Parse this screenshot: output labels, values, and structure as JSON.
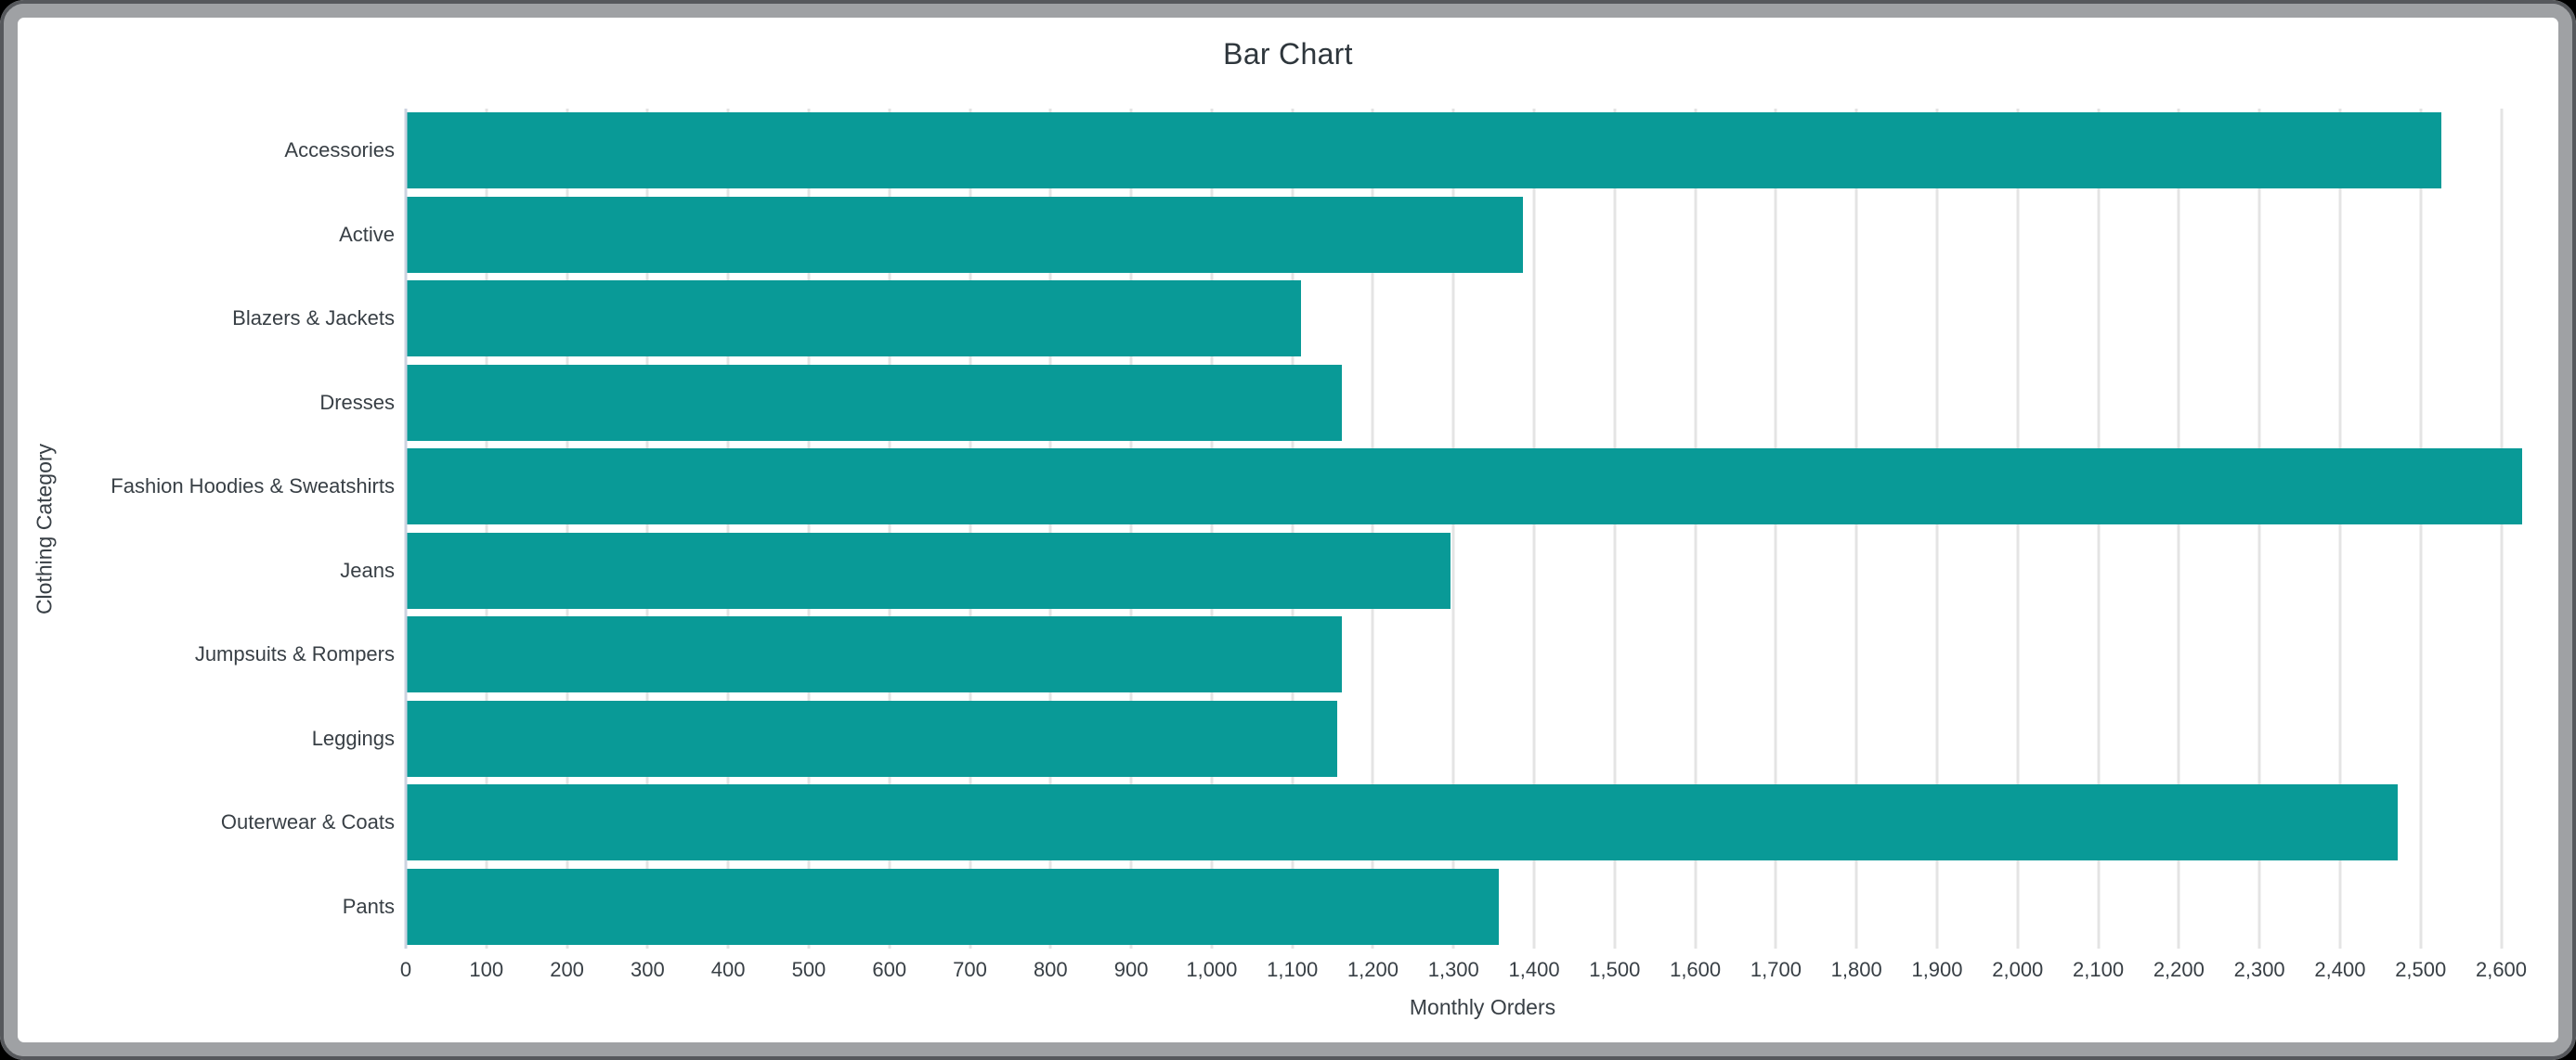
{
  "window": {
    "background_color": "#000000",
    "frame_color": "#9fa1a4",
    "frame_edge_color": "#56585c",
    "content_background": "#ffffff"
  },
  "chart_data": {
    "type": "bar",
    "orientation": "horizontal",
    "title": "Bar Chart",
    "xlabel": "Monthly Orders",
    "ylabel": "Clothing Category",
    "categories": [
      "Accessories",
      "Active",
      "Blazers & Jackets",
      "Dresses",
      "Fashion Hoodies & Sweatshirts",
      "Jeans",
      "Jumpsuits & Rompers",
      "Leggings",
      "Outerwear & Coats",
      "Pants"
    ],
    "values": [
      2525,
      1385,
      1110,
      1160,
      2625,
      1295,
      1160,
      1155,
      2470,
      1355
    ],
    "xlim": [
      0,
      2672
    ],
    "tick_values": [
      0,
      100,
      200,
      300,
      400,
      500,
      600,
      700,
      800,
      900,
      1000,
      1100,
      1200,
      1300,
      1400,
      1500,
      1600,
      1700,
      1800,
      1900,
      2000,
      2100,
      2200,
      2300,
      2400,
      2500,
      2600
    ],
    "tick_labels": [
      "0",
      "100",
      "200",
      "300",
      "400",
      "500",
      "600",
      "700",
      "800",
      "900",
      "1,000",
      "1,100",
      "1,200",
      "1,300",
      "1,400",
      "1,500",
      "1,600",
      "1,700",
      "1,800",
      "1,900",
      "2,000",
      "2,100",
      "2,200",
      "2,300",
      "2,400",
      "2,500",
      "2,600"
    ],
    "grid": true,
    "legend_position": "none",
    "bar_color": "#099a97",
    "grid_color": "#e4e4e4",
    "baseline_color": "#ccd3e0",
    "text_color": "#383f45"
  }
}
